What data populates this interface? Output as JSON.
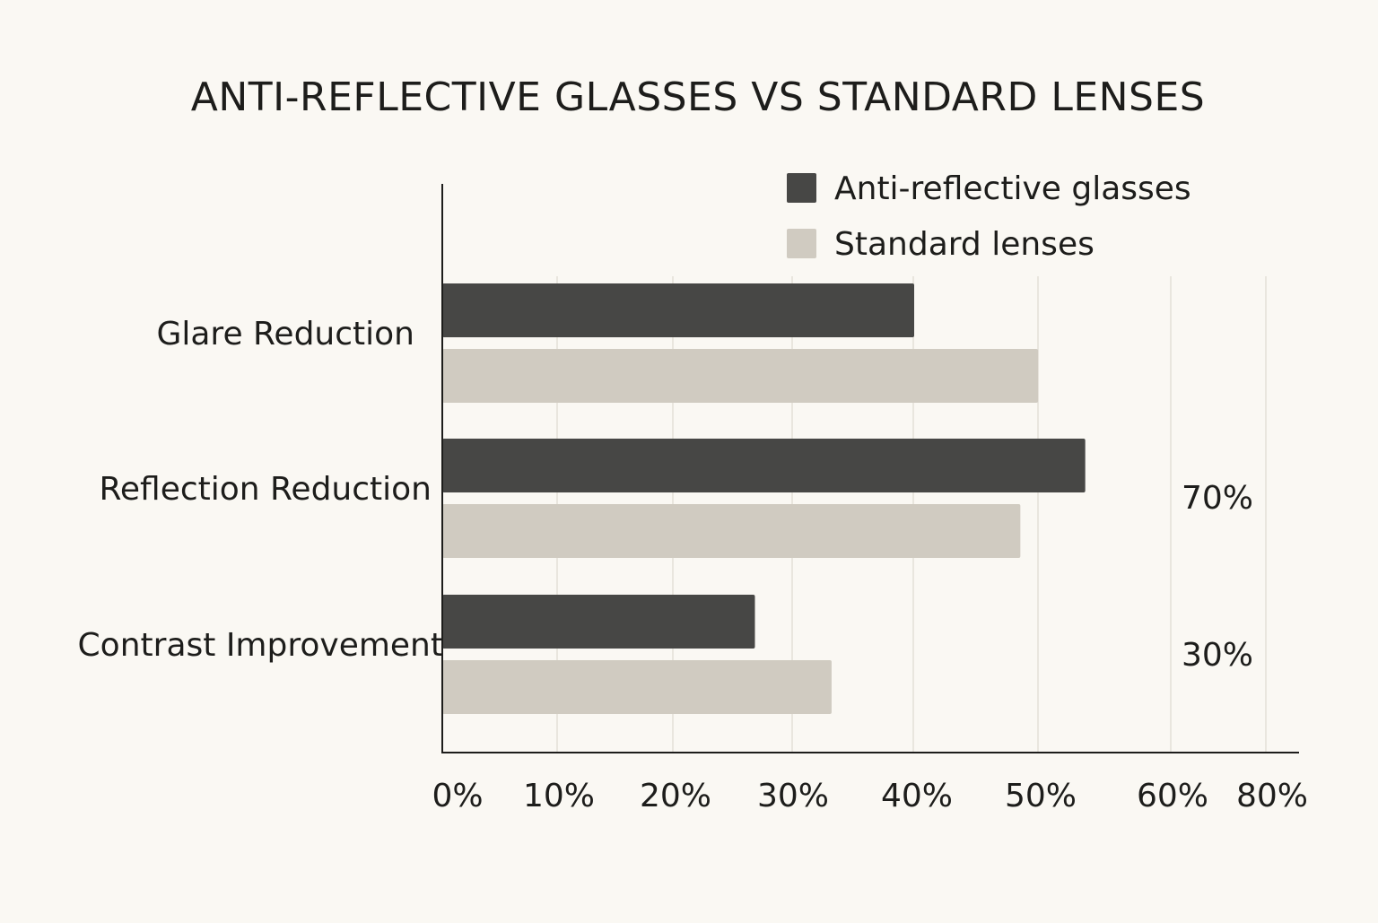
{
  "chart_data": {
    "type": "bar",
    "orientation": "horizontal",
    "title": "ANTI-REFLECTIVE GLASSES VS STANDARD LENSES",
    "categories": [
      "Glare Reduction",
      "Reflection Reduction",
      "Contrast Improvement"
    ],
    "series": [
      {
        "name": "Anti-reflective glasses",
        "color": "#474745",
        "values": [
          40,
          54.5,
          26.5
        ]
      },
      {
        "name": "Standard lenses",
        "color": "#d0cbc1",
        "values": [
          50.5,
          49,
          33
        ]
      }
    ],
    "x_ticks": [
      {
        "label": "0%",
        "value": 0
      },
      {
        "label": "10%",
        "value": 10
      },
      {
        "label": "20%",
        "value": 20
      },
      {
        "label": "30%",
        "value": 30
      },
      {
        "label": "40%",
        "value": 40
      },
      {
        "label": "50%",
        "value": 50
      },
      {
        "label": "60%",
        "value": 60
      },
      {
        "label": "80%",
        "value": 80
      }
    ],
    "annotations": [
      {
        "text": "70%",
        "category": "Reflection Reduction"
      },
      {
        "text": "30%",
        "category": "Contrast Improvement"
      }
    ],
    "legend_position": "top-right",
    "grid": true
  }
}
